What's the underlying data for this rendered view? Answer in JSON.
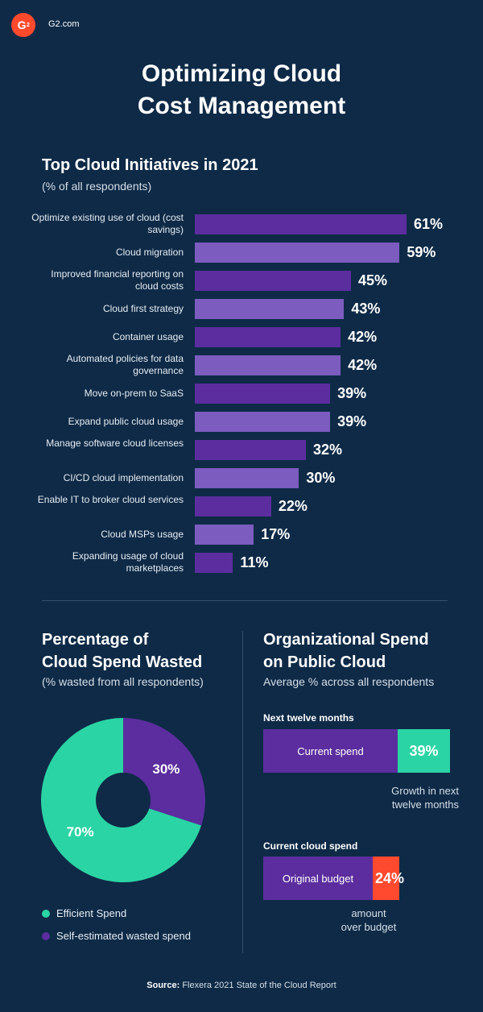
{
  "header": {
    "logo_text": "G",
    "site": "G2.com",
    "title": "Optimizing Cloud\nCost Management"
  },
  "colors": {
    "background": "#0e2a47",
    "bar_dark": "#5b2d9e",
    "bar_light": "#7c5cbf",
    "efficient": "#2bd4a4",
    "wasted": "#5b2d9e",
    "current_spend": "#5b2d9e",
    "growth": "#2bd4a4",
    "over_budget": "#ff4a2f"
  },
  "chart_data": [
    {
      "type": "bar",
      "orientation": "horizontal",
      "title": "Top Cloud Initiatives in 2021",
      "subtitle": "(% of all respondents)",
      "categories": [
        "Optimize existing use of cloud (cost savings)",
        "Cloud migration",
        "Improved financial reporting on cloud costs",
        "Cloud first strategy",
        "Container usage",
        "Automated policies for data governance",
        "Move on-prem to SaaS",
        "Expand public cloud usage",
        "Manage software cloud licenses",
        "CI/CD cloud implementation",
        "Enable IT to broker cloud services",
        "Cloud MSPs usage",
        "Expanding usage of cloud marketplaces"
      ],
      "values": [
        61,
        59,
        45,
        43,
        42,
        42,
        39,
        39,
        32,
        30,
        22,
        17,
        11
      ],
      "value_labels": [
        "61%",
        "59%",
        "45%",
        "43%",
        "42%",
        "42%",
        "39%",
        "39%",
        "32%",
        "30%",
        "22%",
        "17%",
        "11%"
      ],
      "xlim": [
        0,
        61
      ],
      "grid": false
    },
    {
      "type": "pie",
      "donut": true,
      "title": "Percentage of\nCloud Spend Wasted",
      "subtitle": "(% wasted from all respondents)",
      "slices": [
        {
          "name": "Efficient Spend",
          "value": 70,
          "label": "70%"
        },
        {
          "name": "Self-estimated wasted spend",
          "value": 30,
          "label": "30%"
        }
      ],
      "legend": "bottom"
    },
    {
      "type": "bar",
      "stacked": true,
      "title": "Organizational Spend\non Public Cloud",
      "subtitle": "Average % across all respondents",
      "groups": [
        {
          "name": "Next twelve months",
          "parts": [
            {
              "name": "Current spend",
              "value": 100,
              "label": "Current spend"
            },
            {
              "name": "Growth",
              "value": 39,
              "label": "39%"
            }
          ],
          "note": "Growth in next\ntwelve months"
        },
        {
          "name": "Current cloud spend",
          "parts": [
            {
              "name": "Original budget",
              "value": 100,
              "label": "Original budget"
            },
            {
              "name": "Over budget",
              "value": 24,
              "label": "24%"
            }
          ],
          "note": "amount\nover budget"
        }
      ]
    }
  ],
  "source": {
    "label": "Source:",
    "text": "Flexera 2021 State of the Cloud Report"
  }
}
